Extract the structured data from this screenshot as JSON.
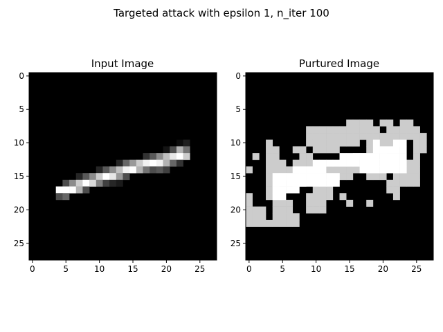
{
  "figure": {
    "suptitle": "Targeted attack with epsilon 1, n_iter 100"
  },
  "chart_data": [
    {
      "type": "heatmap",
      "title": "Input Image",
      "colormap": "gray",
      "shape": [
        28,
        28
      ],
      "xticks": [
        0,
        5,
        10,
        15,
        20,
        25
      ],
      "yticks": [
        0,
        5,
        10,
        15,
        20,
        25
      ],
      "xlim": [
        -0.5,
        27.5
      ],
      "ylim": [
        27.5,
        -0.5
      ],
      "cells": [
        [
          10,
          22,
          0.05
        ],
        [
          10,
          23,
          0.12
        ],
        [
          11,
          20,
          0.08
        ],
        [
          11,
          21,
          0.3
        ],
        [
          11,
          22,
          0.7
        ],
        [
          11,
          23,
          0.45
        ],
        [
          12,
          17,
          0.2
        ],
        [
          12,
          18,
          0.35
        ],
        [
          12,
          19,
          0.55
        ],
        [
          12,
          20,
          0.75
        ],
        [
          12,
          21,
          0.9
        ],
        [
          12,
          22,
          1.0
        ],
        [
          12,
          23,
          0.8
        ],
        [
          13,
          13,
          0.15
        ],
        [
          13,
          14,
          0.4
        ],
        [
          13,
          15,
          0.6
        ],
        [
          13,
          16,
          0.8
        ],
        [
          13,
          17,
          0.95
        ],
        [
          13,
          18,
          1.0
        ],
        [
          13,
          19,
          0.95
        ],
        [
          13,
          20,
          0.7
        ],
        [
          13,
          21,
          0.4
        ],
        [
          13,
          22,
          0.2
        ],
        [
          14,
          10,
          0.15
        ],
        [
          14,
          11,
          0.35
        ],
        [
          14,
          12,
          0.55
        ],
        [
          14,
          13,
          0.75
        ],
        [
          14,
          14,
          0.95
        ],
        [
          14,
          15,
          1.0
        ],
        [
          14,
          16,
          0.7
        ],
        [
          14,
          17,
          0.45
        ],
        [
          14,
          18,
          0.3
        ],
        [
          14,
          19,
          0.35
        ],
        [
          14,
          20,
          0.25
        ],
        [
          15,
          7,
          0.15
        ],
        [
          15,
          8,
          0.35
        ],
        [
          15,
          9,
          0.55
        ],
        [
          15,
          10,
          0.8
        ],
        [
          15,
          11,
          1.0
        ],
        [
          15,
          12,
          0.9
        ],
        [
          15,
          13,
          0.6
        ],
        [
          15,
          14,
          0.3
        ],
        [
          16,
          5,
          0.3
        ],
        [
          16,
          6,
          0.55
        ],
        [
          16,
          7,
          0.8
        ],
        [
          16,
          8,
          1.0
        ],
        [
          16,
          9,
          0.85
        ],
        [
          16,
          10,
          0.5
        ],
        [
          16,
          11,
          0.25
        ],
        [
          16,
          12,
          0.15
        ],
        [
          16,
          13,
          0.1
        ],
        [
          17,
          4,
          1.0
        ],
        [
          17,
          5,
          1.0
        ],
        [
          17,
          6,
          1.0
        ],
        [
          17,
          7,
          0.7
        ],
        [
          17,
          8,
          0.3
        ],
        [
          18,
          4,
          0.3
        ],
        [
          18,
          5,
          0.4
        ]
      ]
    },
    {
      "type": "heatmap",
      "title": "Purtured Image",
      "colormap": "gray",
      "shape": [
        28,
        28
      ],
      "xticks": [
        0,
        5,
        10,
        15,
        20,
        25
      ],
      "yticks": [
        0,
        5,
        10,
        15,
        20,
        25
      ],
      "xlim": [
        -0.5,
        27.5
      ],
      "ylim": [
        27.5,
        -0.5
      ],
      "rows_gray": {
        "7": [
          [
            15,
            18
          ],
          [
            20,
            21
          ],
          [
            23,
            24
          ]
        ],
        "8": [
          [
            9,
            14
          ],
          [
            15,
            19
          ],
          [
            21,
            25
          ]
        ],
        "9": [
          [
            9,
            19
          ],
          [
            20,
            26
          ]
        ],
        "10": [
          [
            3,
            3
          ],
          [
            9,
            15
          ],
          [
            16,
            16
          ],
          [
            18,
            18
          ],
          [
            20,
            22
          ],
          [
            25,
            26
          ]
        ],
        "11": [
          [
            3,
            4
          ],
          [
            7,
            8
          ],
          [
            10,
            13
          ],
          [
            18,
            20
          ],
          [
            25,
            26
          ]
        ],
        "12": [
          [
            1,
            1
          ],
          [
            3,
            4
          ],
          [
            8,
            9
          ],
          [
            16,
            17
          ],
          [
            25,
            25
          ]
        ],
        "13": [
          [
            3,
            5
          ],
          [
            7,
            9
          ],
          [
            24,
            25
          ]
        ],
        "14": [
          [
            0,
            0
          ],
          [
            3,
            6
          ],
          [
            8,
            8
          ],
          [
            12,
            16
          ],
          [
            24,
            25
          ]
        ],
        "15": [
          [
            3,
            5
          ],
          [
            7,
            9
          ],
          [
            14,
            15
          ],
          [
            18,
            20
          ],
          [
            22,
            25
          ]
        ],
        "16": [
          [
            3,
            4
          ],
          [
            7,
            8
          ],
          [
            21,
            25
          ]
        ],
        "17": [
          [
            3,
            3
          ],
          [
            10,
            12
          ],
          [
            21,
            22
          ]
        ],
        "18": [
          [
            0,
            0
          ],
          [
            3,
            3
          ],
          [
            9,
            12
          ],
          [
            14,
            14
          ],
          [
            22,
            22
          ]
        ],
        "19": [
          [
            0,
            0
          ],
          [
            4,
            6
          ],
          [
            9,
            11
          ],
          [
            15,
            15
          ],
          [
            18,
            18
          ]
        ],
        "20": [
          [
            0,
            2
          ],
          [
            4,
            6
          ],
          [
            9,
            11
          ]
        ],
        "21": [
          [
            0,
            2
          ],
          [
            4,
            7
          ]
        ],
        "22": [
          [
            0,
            7
          ]
        ]
      },
      "rows_white": {
        "10": [
          [
            19,
            19
          ],
          [
            22,
            23
          ]
        ],
        "11": [
          [
            19,
            23
          ]
        ],
        "12": [
          [
            14,
            23
          ]
        ],
        "13": [
          [
            10,
            23
          ]
        ],
        "14": [
          [
            7,
            11
          ],
          [
            17,
            23
          ]
        ],
        "15": [
          [
            4,
            13
          ]
        ],
        "16": [
          [
            4,
            13
          ]
        ],
        "17": [
          [
            4,
            7
          ]
        ],
        "18": [
          [
            4,
            5
          ]
        ]
      },
      "gray_value": 0.8
    }
  ]
}
